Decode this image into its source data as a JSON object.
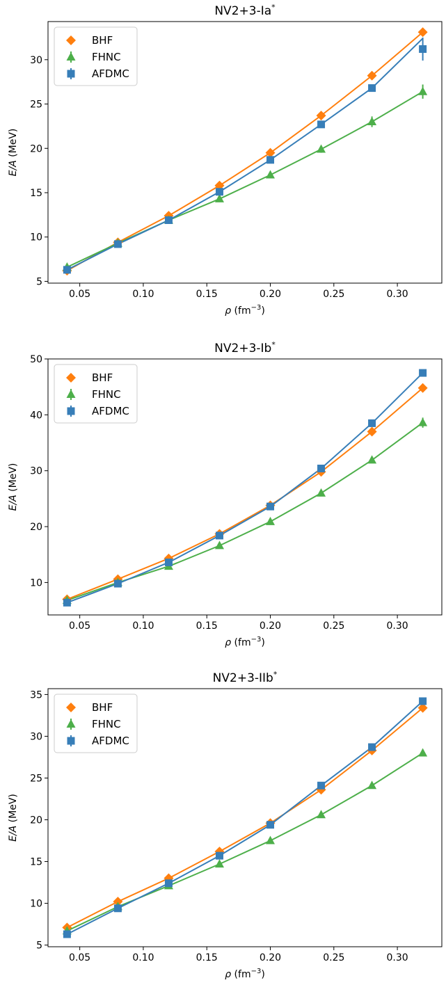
{
  "chart_data": [
    {
      "type": "line",
      "title": "NV2+3-Ia",
      "title_sup": "*",
      "xlabel_sym": "ρ",
      "xlabel_unit": "(fm",
      "xlabel_exp": "−3",
      "xlabel_close": ")",
      "ylabel_sym": "E/A",
      "ylabel_unit": "(MeV)",
      "xlim": [
        0.025,
        0.335
      ],
      "ylim": [
        4.8,
        34.3
      ],
      "xticks": [
        "0.05",
        "0.10",
        "0.15",
        "0.20",
        "0.25",
        "0.30"
      ],
      "yticks": [
        "5",
        "10",
        "15",
        "20",
        "25",
        "30"
      ],
      "legend_position": "upper-left",
      "x": [
        0.04,
        0.08,
        0.12,
        0.16,
        0.2,
        0.24,
        0.28,
        0.32
      ],
      "series": [
        {
          "name": "BHF",
          "marker": "diamond",
          "color": "#ff7f0e",
          "values": [
            6.2,
            9.4,
            12.4,
            15.8,
            19.5,
            23.7,
            28.2,
            33.1
          ]
        },
        {
          "name": "FHNC",
          "marker": "triangle",
          "color": "#4daf4a",
          "values": [
            6.6,
            9.3,
            11.9,
            14.3,
            17.0,
            19.9,
            23.0,
            26.4
          ],
          "errors": [
            0.2,
            0.2,
            0.2,
            0.3,
            0.3,
            0.4,
            0.6,
            0.8
          ]
        },
        {
          "name": "AFDMC",
          "marker": "square",
          "color": "#377eb8",
          "values": [
            6.3,
            9.2,
            11.9,
            15.1,
            18.7,
            22.7,
            26.8,
            31.2
          ],
          "errors": [
            0.1,
            0.1,
            0.1,
            0.2,
            0.3,
            0.3,
            0.4,
            1.3
          ],
          "fit": [
            6.3,
            9.2,
            11.9,
            15.1,
            18.7,
            22.7,
            26.8,
            32.4
          ]
        }
      ]
    },
    {
      "type": "line",
      "title": "NV2+3-Ib",
      "title_sup": "*",
      "xlabel_sym": "ρ",
      "xlabel_unit": "(fm",
      "xlabel_exp": "−3",
      "xlabel_close": ")",
      "ylabel_sym": "E/A",
      "ylabel_unit": "(MeV)",
      "xlim": [
        0.025,
        0.335
      ],
      "ylim": [
        4.2,
        50
      ],
      "xticks": [
        "0.05",
        "0.10",
        "0.15",
        "0.20",
        "0.25",
        "0.30"
      ],
      "yticks": [
        "10",
        "20",
        "30",
        "40",
        "50"
      ],
      "legend_position": "upper-left",
      "x": [
        0.04,
        0.08,
        0.12,
        0.16,
        0.2,
        0.24,
        0.28,
        0.32
      ],
      "series": [
        {
          "name": "BHF",
          "marker": "diamond",
          "color": "#ff7f0e",
          "values": [
            7.0,
            10.6,
            14.3,
            18.7,
            23.8,
            29.8,
            37.0,
            44.8
          ]
        },
        {
          "name": "FHNC",
          "marker": "triangle",
          "color": "#4daf4a",
          "values": [
            6.8,
            10.0,
            12.9,
            16.6,
            20.9,
            26.0,
            31.9,
            38.6
          ],
          "errors": [
            0.2,
            0.2,
            0.2,
            0.3,
            0.3,
            0.4,
            0.5,
            0.9
          ]
        },
        {
          "name": "AFDMC",
          "marker": "square",
          "color": "#377eb8",
          "values": [
            6.4,
            9.8,
            13.6,
            18.4,
            23.6,
            30.4,
            38.5,
            47.5
          ],
          "errors": [
            0.1,
            0.1,
            0.1,
            0.2,
            0.2,
            0.3,
            0.4,
            0.5
          ]
        }
      ]
    },
    {
      "type": "line",
      "title": "NV2+3-IIb",
      "title_sup": "*",
      "xlabel_sym": "ρ",
      "xlabel_unit": "(fm",
      "xlabel_exp": "−3",
      "xlabel_close": ")",
      "ylabel_sym": "E/A",
      "ylabel_unit": "(MeV)",
      "xlim": [
        0.025,
        0.335
      ],
      "ylim": [
        4.8,
        35.7
      ],
      "xticks": [
        "0.05",
        "0.10",
        "0.15",
        "0.20",
        "0.25",
        "0.30"
      ],
      "yticks": [
        "5",
        "10",
        "15",
        "20",
        "25",
        "30",
        "35"
      ],
      "legend_position": "upper-left",
      "x": [
        0.04,
        0.08,
        0.12,
        0.16,
        0.2,
        0.24,
        0.28,
        0.32
      ],
      "series": [
        {
          "name": "BHF",
          "marker": "diamond",
          "color": "#ff7f0e",
          "values": [
            7.1,
            10.2,
            13.0,
            16.2,
            19.6,
            23.6,
            28.3,
            33.4
          ]
        },
        {
          "name": "FHNC",
          "marker": "triangle",
          "color": "#4daf4a",
          "values": [
            6.7,
            9.6,
            12.1,
            14.7,
            17.5,
            20.6,
            24.1,
            28.0
          ],
          "errors": [
            0.1,
            0.1,
            0.2,
            0.2,
            0.2,
            0.3,
            0.3,
            0.4
          ]
        },
        {
          "name": "AFDMC",
          "marker": "square",
          "color": "#377eb8",
          "values": [
            6.3,
            9.4,
            12.4,
            15.7,
            19.4,
            24.1,
            28.7,
            34.2
          ],
          "errors": [
            0.1,
            0.1,
            0.1,
            0.2,
            0.2,
            0.2,
            0.3,
            0.4
          ]
        }
      ]
    }
  ]
}
